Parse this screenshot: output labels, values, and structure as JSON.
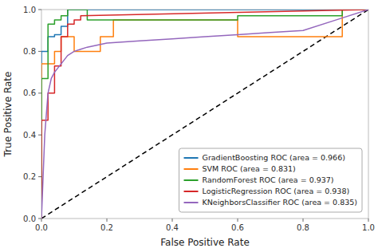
{
  "chart_data": {
    "type": "line",
    "xlabel": "False Positive Rate",
    "ylabel": "True Positive Rate",
    "xlim": [
      0.0,
      1.0
    ],
    "ylim": [
      0.0,
      1.0
    ],
    "xticks": [
      {
        "value": 0,
        "label": "0.0"
      },
      0.2,
      0.4,
      0.6,
      0.8,
      {
        "value": 1,
        "label": "1.0"
      }
    ],
    "yticks": [
      {
        "value": 0,
        "label": "0.0"
      },
      0.2,
      0.4,
      0.6,
      0.8,
      {
        "value": 1,
        "label": "1.0"
      }
    ],
    "grid": false,
    "legend": "lower right",
    "diagonal": {
      "x": [
        0,
        1
      ],
      "values": [
        0,
        1
      ],
      "color": "black",
      "line_style": "dashed"
    },
    "series": [
      {
        "name": "GradientBoosting ROC (area = 0.966)",
        "color": "#1f77b4",
        "x": [
          0.0,
          0.0,
          0.0,
          0.0,
          0.02,
          0.02,
          0.04,
          0.04,
          0.06,
          0.06,
          0.08,
          0.08,
          0.1,
          0.1,
          0.12,
          1.0
        ],
        "values": [
          0.0,
          0.4,
          0.74,
          0.8,
          0.8,
          0.87,
          0.87,
          0.88,
          0.88,
          0.92,
          0.92,
          1.0,
          1.0,
          1.0,
          1.0,
          1.0
        ]
      },
      {
        "name": "SVM ROC (area = 0.831)",
        "color": "#ff7f0e",
        "x": [
          0.0,
          0.0,
          0.0,
          0.04,
          0.04,
          0.06,
          0.06,
          0.1,
          0.1,
          0.18,
          0.18,
          0.22,
          0.22,
          0.6,
          0.6,
          0.92,
          0.92,
          1.0
        ],
        "values": [
          0.0,
          0.2,
          0.74,
          0.74,
          0.8,
          0.8,
          0.87,
          0.87,
          0.8,
          0.8,
          0.87,
          0.87,
          0.95,
          0.95,
          0.87,
          0.87,
          1.0,
          1.0
        ]
      },
      {
        "name": "RandomForest ROC (area = 0.937)",
        "color": "#2ca02c",
        "x": [
          0.0,
          0.0,
          0.0,
          0.02,
          0.02,
          0.04,
          0.04,
          0.06,
          0.06,
          0.08,
          0.08,
          0.14,
          0.14,
          0.6,
          0.6,
          0.92,
          0.92,
          1.0
        ],
        "values": [
          0.0,
          0.6,
          0.67,
          0.67,
          0.93,
          0.93,
          0.95,
          0.95,
          0.97,
          0.97,
          1.0,
          1.0,
          0.95,
          0.95,
          0.97,
          0.97,
          1.0,
          1.0
        ]
      },
      {
        "name": "LogisticRegression ROC (area = 0.938)",
        "color": "#d62728",
        "x": [
          0.0,
          0.0,
          0.0,
          0.02,
          0.02,
          0.04,
          0.04,
          0.06,
          0.06,
          0.08,
          0.08,
          0.1,
          0.1,
          0.12,
          0.12,
          1.0
        ],
        "values": [
          0.0,
          0.4,
          0.47,
          0.47,
          0.6,
          0.6,
          0.73,
          0.73,
          0.87,
          0.87,
          0.93,
          0.93,
          0.95,
          0.95,
          0.97,
          1.0
        ]
      },
      {
        "name": "KNeighborsClassifier ROC (area = 0.835)",
        "color": "#9467bd",
        "x": [
          0.0,
          0.01,
          0.02,
          0.03,
          0.04,
          0.05,
          0.06,
          0.07,
          0.08,
          0.1,
          0.12,
          0.14,
          0.2,
          0.3,
          0.4,
          0.5,
          0.6,
          0.7,
          0.8,
          0.9,
          1.0
        ],
        "values": [
          0.0,
          0.4,
          0.6,
          0.67,
          0.7,
          0.72,
          0.74,
          0.76,
          0.78,
          0.8,
          0.81,
          0.82,
          0.84,
          0.85,
          0.86,
          0.87,
          0.88,
          0.89,
          0.9,
          0.95,
          1.0
        ]
      }
    ]
  }
}
